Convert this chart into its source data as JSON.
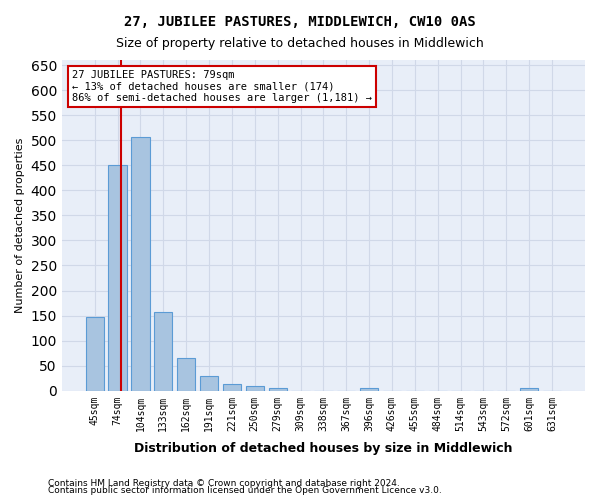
{
  "title": "27, JUBILEE PASTURES, MIDDLEWICH, CW10 0AS",
  "subtitle": "Size of property relative to detached houses in Middlewich",
  "xlabel": "Distribution of detached houses by size in Middlewich",
  "ylabel": "Number of detached properties",
  "categories": [
    "45sqm",
    "74sqm",
    "104sqm",
    "133sqm",
    "162sqm",
    "191sqm",
    "221sqm",
    "250sqm",
    "279sqm",
    "309sqm",
    "338sqm",
    "367sqm",
    "396sqm",
    "426sqm",
    "455sqm",
    "484sqm",
    "514sqm",
    "543sqm",
    "572sqm",
    "601sqm",
    "631sqm"
  ],
  "values": [
    148,
    450,
    507,
    158,
    65,
    30,
    13,
    9,
    5,
    0,
    0,
    0,
    6,
    0,
    0,
    0,
    0,
    0,
    0,
    6,
    0
  ],
  "bar_color": "#a8c4e0",
  "bar_edge_color": "#5b9bd5",
  "grid_color": "#d0d8e8",
  "background_color": "#e8eef8",
  "annotation_box_text": "27 JUBILEE PASTURES: 79sqm\n← 13% of detached houses are smaller (174)\n86% of semi-detached houses are larger (1,181) →",
  "annotation_box_color": "#cc0000",
  "property_line_x": 1.17,
  "ylim": [
    0,
    660
  ],
  "yticks": [
    0,
    50,
    100,
    150,
    200,
    250,
    300,
    350,
    400,
    450,
    500,
    550,
    600,
    650
  ],
  "footnote1": "Contains HM Land Registry data © Crown copyright and database right 2024.",
  "footnote2": "Contains public sector information licensed under the Open Government Licence v3.0."
}
